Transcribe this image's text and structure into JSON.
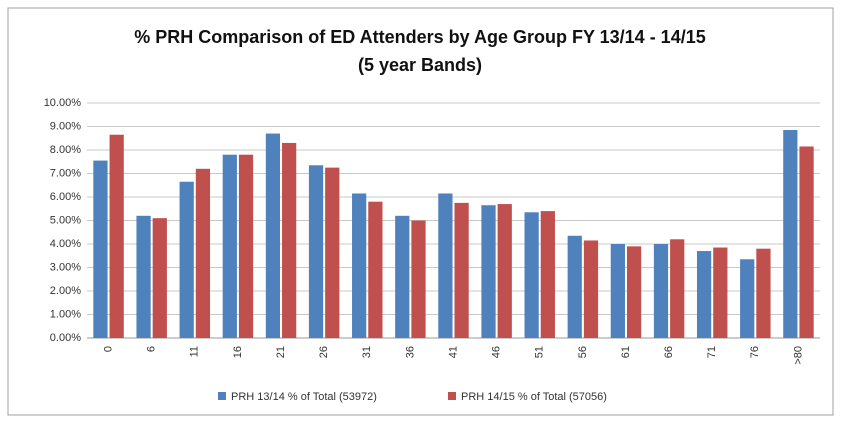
{
  "chart_data": {
    "type": "bar",
    "title": [
      "% PRH Comparison of ED Attenders by Age Group FY 13/14 - 14/15",
      "(5 year Bands)"
    ],
    "categories": [
      "0",
      "6",
      "11",
      "16",
      "21",
      "26",
      "31",
      "36",
      "41",
      "46",
      "51",
      "56",
      "61",
      "66",
      "71",
      "76",
      ">80"
    ],
    "series": [
      {
        "name": "PRH 13/14 % of Total (53972)",
        "color": "#4f81bd",
        "values": [
          7.55,
          5.2,
          6.65,
          7.8,
          8.7,
          7.35,
          6.15,
          5.2,
          6.15,
          5.65,
          5.35,
          4.35,
          4.0,
          4.0,
          3.7,
          3.35,
          8.85
        ]
      },
      {
        "name": "PRH 14/15 % of Total (57056)",
        "color": "#c0504d",
        "values": [
          8.65,
          5.1,
          7.2,
          7.8,
          8.3,
          7.25,
          5.8,
          5.0,
          5.75,
          5.7,
          5.4,
          4.15,
          3.9,
          4.2,
          3.85,
          3.8,
          8.15
        ]
      }
    ],
    "ylim": [
      0,
      10
    ],
    "yticks": [
      {
        "value": 0,
        "label": "0.00%"
      },
      {
        "value": 1,
        "label": "1.00%"
      },
      {
        "value": 2,
        "label": "2.00%"
      },
      {
        "value": 3,
        "label": "3.00%"
      },
      {
        "value": 4,
        "label": "4.00%"
      },
      {
        "value": 5,
        "label": "5.00%"
      },
      {
        "value": 6,
        "label": "6.00%"
      },
      {
        "value": 7,
        "label": "7.00%"
      },
      {
        "value": 8,
        "label": "8.00%"
      },
      {
        "value": 9,
        "label": "9.00%"
      },
      {
        "value": 10,
        "label": "10.00%"
      }
    ],
    "grid": true,
    "legend": "bottom"
  }
}
